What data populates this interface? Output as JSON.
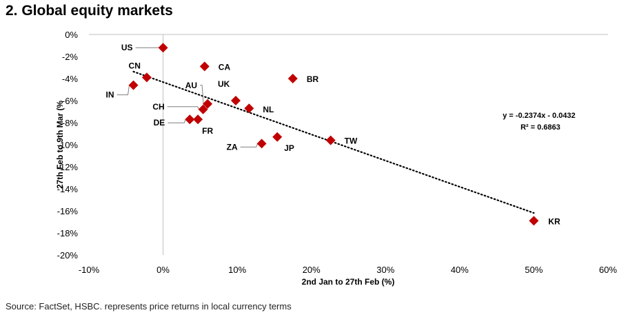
{
  "page": {
    "title": "2. Global equity markets",
    "source": "Source: FactSet, HSBC. represents price returns in local currency terms"
  },
  "colors": {
    "marker": "#c00000",
    "axis": "#bfbfbf",
    "trend": "#000000",
    "leader": "#7f7f7f"
  },
  "chart_data": {
    "type": "scatter",
    "title": "2. Global equity markets",
    "xlabel": "2nd Jan to 27th Feb (%)",
    "ylabel": "27th Feb to 9th Mar (%",
    "xlim": [
      -10,
      60
    ],
    "ylim": [
      -20,
      0
    ],
    "x_ticks": [
      -10,
      0,
      10,
      20,
      30,
      40,
      50,
      60
    ],
    "y_ticks": [
      0,
      -2,
      -4,
      -6,
      -8,
      -10,
      -12,
      -14,
      -16,
      -18,
      -20
    ],
    "x_tick_labels": [
      "-10%",
      "0%",
      "10%",
      "20%",
      "30%",
      "40%",
      "50%",
      "60%"
    ],
    "y_tick_labels": [
      "0%",
      "-2%",
      "-4%",
      "-6%",
      "-8%",
      "-10%",
      "-12%",
      "-14%",
      "-16%",
      "-18%",
      "-20%"
    ],
    "grid": false,
    "points": [
      {
        "label": "US",
        "x": 0.0,
        "y": -1.2
      },
      {
        "label": "CA",
        "x": 5.6,
        "y": -2.9
      },
      {
        "label": "BR",
        "x": 17.5,
        "y": -4.0
      },
      {
        "label": "CN",
        "x": -2.2,
        "y": -3.9
      },
      {
        "label": "IN",
        "x": -4.0,
        "y": -4.6
      },
      {
        "label": "AU",
        "x": 6.0,
        "y": -6.3
      },
      {
        "label": "UK",
        "x": 9.8,
        "y": -6.0
      },
      {
        "label": "NL",
        "x": 11.6,
        "y": -6.7
      },
      {
        "label": "CH",
        "x": 5.4,
        "y": -6.8
      },
      {
        "label": "DE",
        "x": 3.6,
        "y": -7.7
      },
      {
        "label": "FR",
        "x": 4.7,
        "y": -7.7
      },
      {
        "label": "JP",
        "x": 15.4,
        "y": -9.3
      },
      {
        "label": "ZA",
        "x": 13.3,
        "y": -9.9
      },
      {
        "label": "TW",
        "x": 22.6,
        "y": -9.6
      },
      {
        "label": "KR",
        "x": 50.0,
        "y": -16.9
      }
    ],
    "trendline": {
      "slope": -0.2374,
      "intercept": -0.0432,
      "x_range": [
        -4,
        50
      ],
      "equation_text": "y = -0.2374x - 0.0432",
      "r2_text": "R² = 0.6863"
    }
  }
}
